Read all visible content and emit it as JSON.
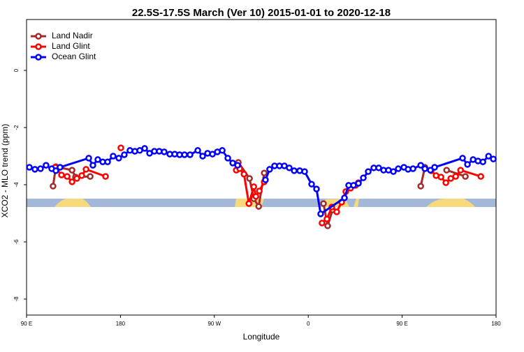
{
  "chart_data": {
    "type": "line",
    "title": "22.5S-17.5S March (Ver 10)   2015-01-01 to 2020-12-18",
    "x_label": "Longitude",
    "y_label": "XCO2 - MLO trend (ppm)",
    "xlim": [
      90,
      540
    ],
    "xticks": [
      {
        "value": 90,
        "label": "90 E"
      },
      {
        "value": 180,
        "label": "180"
      },
      {
        "value": 270,
        "label": "90 W"
      },
      {
        "value": 360,
        "label": "0"
      },
      {
        "value": 450,
        "label": "90 E"
      },
      {
        "value": 540,
        "label": "180"
      }
    ],
    "ylim": [
      -8.56,
      1.78
    ],
    "yticks": [
      0,
      -2,
      -4,
      -6,
      -8
    ],
    "legend": "top-left",
    "series": [
      {
        "name": "Land Nadir",
        "color": "#a52a2a",
        "x": [
          115.4,
          118.1,
          133.6,
          136.9,
          151.0,
          null,
          293.0,
          303.7,
          307.8,
          312.5,
          317.8,
          null,
          374.6,
          378.6,
          383.3,
          null,
          467.8,
          471.8,
          null,
          492.6,
          510.6
        ],
        "values": [
          -4.05,
          -3.37,
          -3.49,
          -3.73,
          -3.71,
          null,
          -3.22,
          -3.78,
          -4.49,
          -4.76,
          -3.59,
          null,
          -4.66,
          -5.44,
          -4.88,
          null,
          -4.05,
          -3.39,
          null,
          -3.49,
          -3.71
        ]
      },
      {
        "name": "Land Glint",
        "color": "#ff0000",
        "x": [
          117.5,
          123.5,
          128.9,
          133.6,
          138.2,
          142.9,
          147.0,
          165.7,
          null,
          180.4,
          null,
          291.0,
          294.3,
          298.4,
          303.1,
          307.8,
          309.8,
          313.1,
          317.8,
          null,
          373.2,
          377.9,
          382.6,
          387.3,
          392.0,
          396.0,
          400.7,
          405.4,
          408.1,
          null,
          477.8,
          482.5,
          487.2,
          491.9,
          496.6,
          501.3,
          506.0,
          525.4
        ],
        "values": [
          -3.39,
          -3.66,
          -3.71,
          -3.9,
          -3.78,
          -3.68,
          -3.46,
          -3.71,
          null,
          -2.71,
          null,
          -3.49,
          -3.44,
          -3.63,
          -4.66,
          -4.07,
          -4.41,
          -4.22,
          -3.9,
          null,
          -5.34,
          -5.2,
          -4.78,
          -4.95,
          -4.61,
          -4.24,
          -4.12,
          -4.02,
          -3.93,
          null,
          -3.51,
          -3.68,
          -3.73,
          -3.93,
          -3.78,
          -3.71,
          -3.49,
          -3.71
        ]
      },
      {
        "name": "Ocean Glint",
        "color": "#0000ff",
        "x": [
          92.7,
          98.0,
          103.4,
          108.7,
          114.1,
          118.1,
          122.1,
          149.6,
          153.6,
          158.3,
          163.0,
          167.7,
          173.0,
          178.4,
          183.7,
          189.1,
          193.8,
          198.5,
          203.2,
          207.9,
          212.5,
          217.2,
          221.9,
          227.3,
          232.0,
          236.7,
          241.4,
          246.7,
          254.1,
          258.8,
          263.5,
          268.2,
          272.9,
          277.6,
          282.9,
          287.6,
          292.3,
          null,
          319.0,
          323.0,
          327.7,
          332.4,
          337.1,
          341.8,
          346.5,
          351.8,
          356.5,
          363.2,
          367.9,
          371.9,
          394.7,
          398.7,
          403.4,
          408.1,
          412.8,
          417.5,
          422.8,
          427.5,
          432.2,
          436.9,
          441.6,
          446.3,
          451.7,
          455.7,
          460.4,
          467.8,
          471.8,
          477.1,
          481.1,
          507.9,
          512.6,
          518.0,
          522.7,
          527.4,
          532.8,
          537.4
        ],
        "values": [
          -3.39,
          -3.46,
          -3.44,
          -3.32,
          -3.44,
          -3.51,
          -3.39,
          -3.07,
          -3.32,
          -3.12,
          -3.2,
          -3.2,
          -3.0,
          -3.07,
          -2.95,
          -2.8,
          -2.83,
          -2.8,
          -2.73,
          -2.9,
          -2.83,
          -2.83,
          -2.85,
          -2.93,
          -2.93,
          -2.95,
          -2.95,
          -2.95,
          -2.8,
          -3.0,
          -2.9,
          -2.93,
          -2.85,
          -2.8,
          -3.07,
          -3.24,
          -3.32,
          null,
          -3.83,
          -3.46,
          -3.34,
          -3.34,
          -3.34,
          -3.41,
          -3.51,
          -3.51,
          -3.54,
          -3.98,
          -4.15,
          -5.02,
          -4.46,
          -4.02,
          -4.02,
          -3.95,
          -3.76,
          -3.54,
          -3.41,
          -3.41,
          -3.49,
          -3.49,
          -3.54,
          -3.44,
          -3.39,
          -3.46,
          -3.44,
          -3.32,
          -3.44,
          -3.49,
          -3.39,
          -3.07,
          -3.29,
          -3.12,
          -3.17,
          -3.2,
          -3.0,
          -3.1
        ]
      }
    ]
  }
}
